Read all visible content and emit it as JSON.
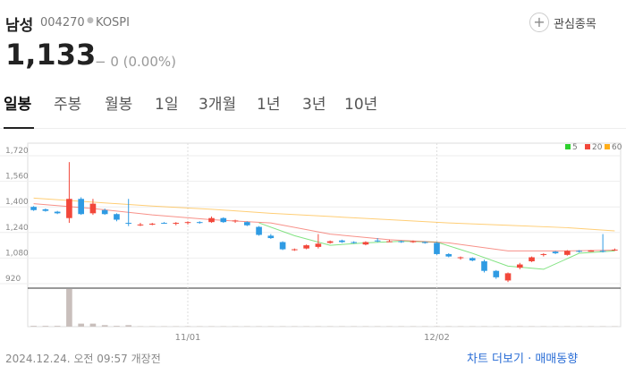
{
  "header": {
    "name": "남성",
    "code": "004270",
    "market": "KOSPI",
    "watch": "관심종목",
    "price": "1,133",
    "change": "− 0 (0.00%)"
  },
  "tabs": [
    "일봉",
    "주봉",
    "월봉",
    "1일",
    "3개월",
    "1년",
    "3년",
    "10년"
  ],
  "footer": {
    "time": "2024.12.24. 오전 09:57 개장전",
    "links": "차트 더보기 · 매매동향"
  },
  "chart_data": {
    "type": "candlestick",
    "up_color": "#f2473a",
    "down_color": "#2f9be3",
    "volume_color": "#c9bfbc",
    "ylim": [
      920,
      1720
    ],
    "yticks": [
      {
        "value": 920,
        "label": "920"
      },
      {
        "value": 1080,
        "label": "1,080"
      },
      {
        "value": 1240,
        "label": "1,240"
      },
      {
        "value": 1400,
        "label": "1,400"
      },
      {
        "value": 1560,
        "label": "1,560"
      },
      {
        "value": 1720,
        "label": "1,720"
      }
    ],
    "xlim": [
      -0.5,
      49.5
    ],
    "xticks": [
      {
        "value": 13,
        "label": "11/01"
      },
      {
        "value": 34,
        "label": "12/02"
      }
    ],
    "open": [
      1400,
      1385,
      1370,
      1330,
      1450,
      1360,
      1380,
      1355,
      1300,
      1285,
      1290,
      1300,
      1295,
      1300,
      1305,
      1305,
      1330,
      1310,
      1305,
      1275,
      1220,
      1180,
      1130,
      1140,
      1150,
      1175,
      1190,
      1180,
      1165,
      1190,
      1180,
      1185,
      1180,
      1180,
      1175,
      1105,
      1080,
      1080,
      1060,
      1000,
      940,
      1020,
      1060,
      1100,
      1120,
      1100,
      1125,
      1120,
      1125,
      1130
    ],
    "high": [
      1405,
      1390,
      1375,
      1680,
      1460,
      1450,
      1390,
      1360,
      1450,
      1300,
      1300,
      1305,
      1305,
      1310,
      1310,
      1340,
      1335,
      1320,
      1310,
      1280,
      1230,
      1185,
      1140,
      1165,
      1230,
      1190,
      1195,
      1185,
      1185,
      1205,
      1195,
      1190,
      1190,
      1185,
      1180,
      1110,
      1090,
      1085,
      1070,
      1005,
      990,
      1050,
      1090,
      1110,
      1125,
      1130,
      1130,
      1130,
      1230,
      1140
    ],
    "low": [
      1375,
      1370,
      1355,
      1300,
      1350,
      1350,
      1350,
      1310,
      1280,
      1280,
      1285,
      1295,
      1285,
      1290,
      1295,
      1300,
      1300,
      1300,
      1280,
      1220,
      1200,
      1130,
      1125,
      1135,
      1140,
      1170,
      1175,
      1170,
      1160,
      1180,
      1180,
      1175,
      1175,
      1170,
      1100,
      1085,
      1070,
      1060,
      990,
      950,
      930,
      1010,
      1055,
      1090,
      1105,
      1095,
      1115,
      1120,
      1115,
      1125
    ],
    "close": [
      1380,
      1375,
      1360,
      1450,
      1355,
      1420,
      1355,
      1320,
      1295,
      1290,
      1295,
      1295,
      1300,
      1305,
      1300,
      1330,
      1305,
      1315,
      1285,
      1225,
      1205,
      1135,
      1135,
      1160,
      1170,
      1185,
      1180,
      1175,
      1180,
      1185,
      1185,
      1180,
      1185,
      1175,
      1105,
      1090,
      1085,
      1065,
      1000,
      960,
      985,
      1040,
      1085,
      1105,
      1110,
      1125,
      1120,
      1128,
      1120,
      1133
    ],
    "volume": [
      2,
      2,
      2,
      100,
      8,
      8,
      4,
      2,
      4,
      1,
      1,
      1,
      1,
      1,
      1,
      1,
      1,
      1,
      1,
      1,
      1,
      1,
      1,
      1,
      1,
      1,
      1,
      1,
      1,
      1,
      1,
      1,
      1,
      1,
      1,
      1,
      1,
      1,
      1,
      1,
      1,
      1,
      1,
      1,
      1,
      1,
      1,
      1,
      1,
      1
    ],
    "volume_lim": [
      0,
      100
    ],
    "series": [
      {
        "name": "5",
        "color": "#2ed12e",
        "x": [
          19,
          22,
          25,
          28,
          31,
          34,
          37,
          40,
          43,
          46,
          49
        ],
        "values": [
          1300,
          1220,
          1160,
          1175,
          1185,
          1180,
          1110,
          1030,
          1010,
          1110,
          1125
        ]
      },
      {
        "name": "20",
        "color": "#f2473a",
        "x": [
          0,
          5,
          10,
          15,
          20,
          25,
          30,
          35,
          40,
          45,
          49
        ],
        "values": [
          1420,
          1390,
          1350,
          1320,
          1300,
          1230,
          1195,
          1175,
          1125,
          1125,
          1130
        ]
      },
      {
        "name": "60",
        "color": "#ffae1a",
        "x": [
          0,
          5,
          10,
          15,
          20,
          25,
          30,
          35,
          40,
          45,
          49
        ],
        "values": [
          1455,
          1430,
          1405,
          1385,
          1360,
          1340,
          1320,
          1300,
          1285,
          1270,
          1250
        ]
      }
    ]
  }
}
